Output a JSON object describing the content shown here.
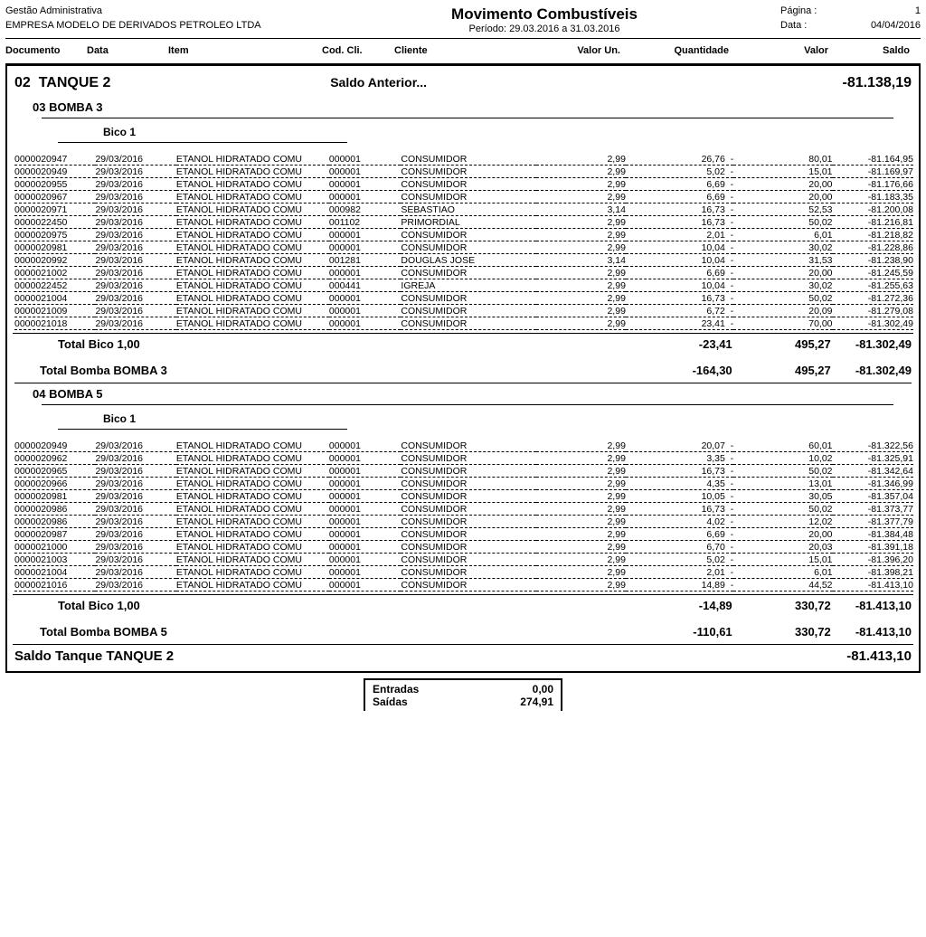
{
  "header": {
    "system": "Gestão Administrativa",
    "company": "EMPRESA MODELO DE DERIVADOS PETROLEO LTDA",
    "title": "Movimento Combustíveis",
    "period": "Período: 29.03.2016 a 31.03.2016",
    "page_label": "Página :",
    "page_value": "1",
    "date_label": "Data :",
    "date_value": "04/04/2016"
  },
  "columns": {
    "documento": "Documento",
    "data": "Data",
    "item": "Item",
    "cod_cli": "Cod. Cli.",
    "cliente": "Cliente",
    "valor_un": "Valor Un.",
    "quantidade": "Quantidade",
    "valor": "Valor",
    "saldo": "Saldo"
  },
  "tank": {
    "code": "02",
    "name": "TANQUE 2",
    "prev_balance_label": "Saldo Anterior...",
    "prev_balance": "-81.138,19",
    "saldo_label": "Saldo Tanque TANQUE 2",
    "saldo_value": "-81.413,10"
  },
  "bomba3": {
    "header": "03 BOMBA 3",
    "bico_header": "Bico 1",
    "rows": [
      {
        "doc": "0000020947",
        "data": "29/03/2016",
        "item": "ETANOL HIDRATADO COMU",
        "cod": "000001",
        "cli": "CONSUMIDOR",
        "un": "2,99",
        "qt": "26,76",
        "sep": "-",
        "val": "80,01",
        "sal": "-81.164,95"
      },
      {
        "doc": "0000020949",
        "data": "29/03/2016",
        "item": "ETANOL HIDRATADO COMU",
        "cod": "000001",
        "cli": "CONSUMIDOR",
        "un": "2,99",
        "qt": "5,02",
        "sep": "-",
        "val": "15,01",
        "sal": "-81.169,97"
      },
      {
        "doc": "0000020955",
        "data": "29/03/2016",
        "item": "ETANOL HIDRATADO COMU",
        "cod": "000001",
        "cli": "CONSUMIDOR",
        "un": "2,99",
        "qt": "6,69",
        "sep": "-",
        "val": "20,00",
        "sal": "-81.176,66"
      },
      {
        "doc": "0000020967",
        "data": "29/03/2016",
        "item": "ETANOL HIDRATADO COMU",
        "cod": "000001",
        "cli": "CONSUMIDOR",
        "un": "2,99",
        "qt": "6,69",
        "sep": "-",
        "val": "20,00",
        "sal": "-81.183,35"
      },
      {
        "doc": "0000020971",
        "data": "29/03/2016",
        "item": "ETANOL HIDRATADO COMU",
        "cod": "000982",
        "cli": "SEBASTIAO",
        "un": "3,14",
        "qt": "16,73",
        "sep": "-",
        "val": "52,53",
        "sal": "-81.200,08"
      },
      {
        "doc": "0000022450",
        "data": "29/03/2016",
        "item": "ETANOL HIDRATADO COMU",
        "cod": "001102",
        "cli": "PRIMORDIAL",
        "un": "2,99",
        "qt": "16,73",
        "sep": "-",
        "val": "50,02",
        "sal": "-81.216,81"
      },
      {
        "doc": "0000020975",
        "data": "29/03/2016",
        "item": "ETANOL HIDRATADO COMU",
        "cod": "000001",
        "cli": "CONSUMIDOR",
        "un": "2,99",
        "qt": "2,01",
        "sep": "-",
        "val": "6,01",
        "sal": "-81.218,82"
      },
      {
        "doc": "0000020981",
        "data": "29/03/2016",
        "item": "ETANOL HIDRATADO COMU",
        "cod": "000001",
        "cli": "CONSUMIDOR",
        "un": "2,99",
        "qt": "10,04",
        "sep": "-",
        "val": "30,02",
        "sal": "-81.228,86"
      },
      {
        "doc": "0000020992",
        "data": "29/03/2016",
        "item": "ETANOL HIDRATADO COMU",
        "cod": "001281",
        "cli": "DOUGLAS JOSE",
        "un": "3,14",
        "qt": "10,04",
        "sep": "-",
        "val": "31,53",
        "sal": "-81.238,90"
      },
      {
        "doc": "0000021002",
        "data": "29/03/2016",
        "item": "ETANOL HIDRATADO COMU",
        "cod": "000001",
        "cli": "CONSUMIDOR",
        "un": "2,99",
        "qt": "6,69",
        "sep": "-",
        "val": "20,00",
        "sal": "-81.245,59"
      },
      {
        "doc": "0000022452",
        "data": "29/03/2016",
        "item": "ETANOL HIDRATADO COMU",
        "cod": "000441",
        "cli": "IGREJA",
        "un": "2,99",
        "qt": "10,04",
        "sep": "-",
        "val": "30,02",
        "sal": "-81.255,63"
      },
      {
        "doc": "0000021004",
        "data": "29/03/2016",
        "item": "ETANOL HIDRATADO COMU",
        "cod": "000001",
        "cli": "CONSUMIDOR",
        "un": "2,99",
        "qt": "16,73",
        "sep": "-",
        "val": "50,02",
        "sal": "-81.272,36"
      },
      {
        "doc": "0000021009",
        "data": "29/03/2016",
        "item": "ETANOL HIDRATADO COMU",
        "cod": "000001",
        "cli": "CONSUMIDOR",
        "un": "2,99",
        "qt": "6,72",
        "sep": "-",
        "val": "20,09",
        "sal": "-81.279,08"
      },
      {
        "doc": "0000021018",
        "data": "29/03/2016",
        "item": "ETANOL HIDRATADO COMU",
        "cod": "000001",
        "cli": "CONSUMIDOR",
        "un": "2,99",
        "qt": "23,41",
        "sep": "-",
        "val": "70,00",
        "sal": "-81.302,49"
      }
    ],
    "total_bico": {
      "label": "Total Bico 1,00",
      "qt": "-23,41",
      "val": "495,27",
      "sal": "-81.302,49"
    },
    "total_bomba": {
      "label": "Total Bomba BOMBA 3",
      "qt": "-164,30",
      "val": "495,27",
      "sal": "-81.302,49"
    }
  },
  "bomba5": {
    "header": "04 BOMBA 5",
    "bico_header": "Bico 1",
    "rows": [
      {
        "doc": "0000020949",
        "data": "29/03/2016",
        "item": "ETANOL HIDRATADO COMU",
        "cod": "000001",
        "cli": "CONSUMIDOR",
        "un": "2,99",
        "qt": "20,07",
        "sep": "-",
        "val": "60,01",
        "sal": "-81.322,56"
      },
      {
        "doc": "0000020962",
        "data": "29/03/2016",
        "item": "ETANOL HIDRATADO COMU",
        "cod": "000001",
        "cli": "CONSUMIDOR",
        "un": "2,99",
        "qt": "3,35",
        "sep": "-",
        "val": "10,02",
        "sal": "-81.325,91"
      },
      {
        "doc": "0000020965",
        "data": "29/03/2016",
        "item": "ETANOL HIDRATADO COMU",
        "cod": "000001",
        "cli": "CONSUMIDOR",
        "un": "2,99",
        "qt": "16,73",
        "sep": "-",
        "val": "50,02",
        "sal": "-81.342,64"
      },
      {
        "doc": "0000020966",
        "data": "29/03/2016",
        "item": "ETANOL HIDRATADO COMU",
        "cod": "000001",
        "cli": "CONSUMIDOR",
        "un": "2,99",
        "qt": "4,35",
        "sep": "-",
        "val": "13,01",
        "sal": "-81.346,99"
      },
      {
        "doc": "0000020981",
        "data": "29/03/2016",
        "item": "ETANOL HIDRATADO COMU",
        "cod": "000001",
        "cli": "CONSUMIDOR",
        "un": "2,99",
        "qt": "10,05",
        "sep": "-",
        "val": "30,05",
        "sal": "-81.357,04"
      },
      {
        "doc": "0000020986",
        "data": "29/03/2016",
        "item": "ETANOL HIDRATADO COMU",
        "cod": "000001",
        "cli": "CONSUMIDOR",
        "un": "2,99",
        "qt": "16,73",
        "sep": "-",
        "val": "50,02",
        "sal": "-81.373,77"
      },
      {
        "doc": "0000020986",
        "data": "29/03/2016",
        "item": "ETANOL HIDRATADO COMU",
        "cod": "000001",
        "cli": "CONSUMIDOR",
        "un": "2,99",
        "qt": "4,02",
        "sep": "-",
        "val": "12,02",
        "sal": "-81.377,79"
      },
      {
        "doc": "0000020987",
        "data": "29/03/2016",
        "item": "ETANOL HIDRATADO COMU",
        "cod": "000001",
        "cli": "CONSUMIDOR",
        "un": "2,99",
        "qt": "6,69",
        "sep": "-",
        "val": "20,00",
        "sal": "-81.384,48"
      },
      {
        "doc": "0000021000",
        "data": "29/03/2016",
        "item": "ETANOL HIDRATADO COMU",
        "cod": "000001",
        "cli": "CONSUMIDOR",
        "un": "2,99",
        "qt": "6,70",
        "sep": "-",
        "val": "20,03",
        "sal": "-81.391,18"
      },
      {
        "doc": "0000021003",
        "data": "29/03/2016",
        "item": "ETANOL HIDRATADO COMU",
        "cod": "000001",
        "cli": "CONSUMIDOR",
        "un": "2,99",
        "qt": "5,02",
        "sep": "-",
        "val": "15,01",
        "sal": "-81.396,20"
      },
      {
        "doc": "0000021004",
        "data": "29/03/2016",
        "item": "ETANOL HIDRATADO COMU",
        "cod": "000001",
        "cli": "CONSUMIDOR",
        "un": "2,99",
        "qt": "2,01",
        "sep": "-",
        "val": "6,01",
        "sal": "-81.398,21"
      },
      {
        "doc": "0000021016",
        "data": "29/03/2016",
        "item": "ETANOL HIDRATADO COMU",
        "cod": "000001",
        "cli": "CONSUMIDOR",
        "un": "2,99",
        "qt": "14,89",
        "sep": "-",
        "val": "44,52",
        "sal": "-81.413,10"
      }
    ],
    "total_bico": {
      "label": "Total Bico 1,00",
      "qt": "-14,89",
      "val": "330,72",
      "sal": "-81.413,10"
    },
    "total_bomba": {
      "label": "Total Bomba BOMBA 5",
      "qt": "-110,61",
      "val": "330,72",
      "sal": "-81.413,10"
    }
  },
  "summary": {
    "entradas_label": "Entradas",
    "entradas_value": "0,00",
    "saidas_label": "Saídas",
    "saidas_value": "274,91"
  }
}
